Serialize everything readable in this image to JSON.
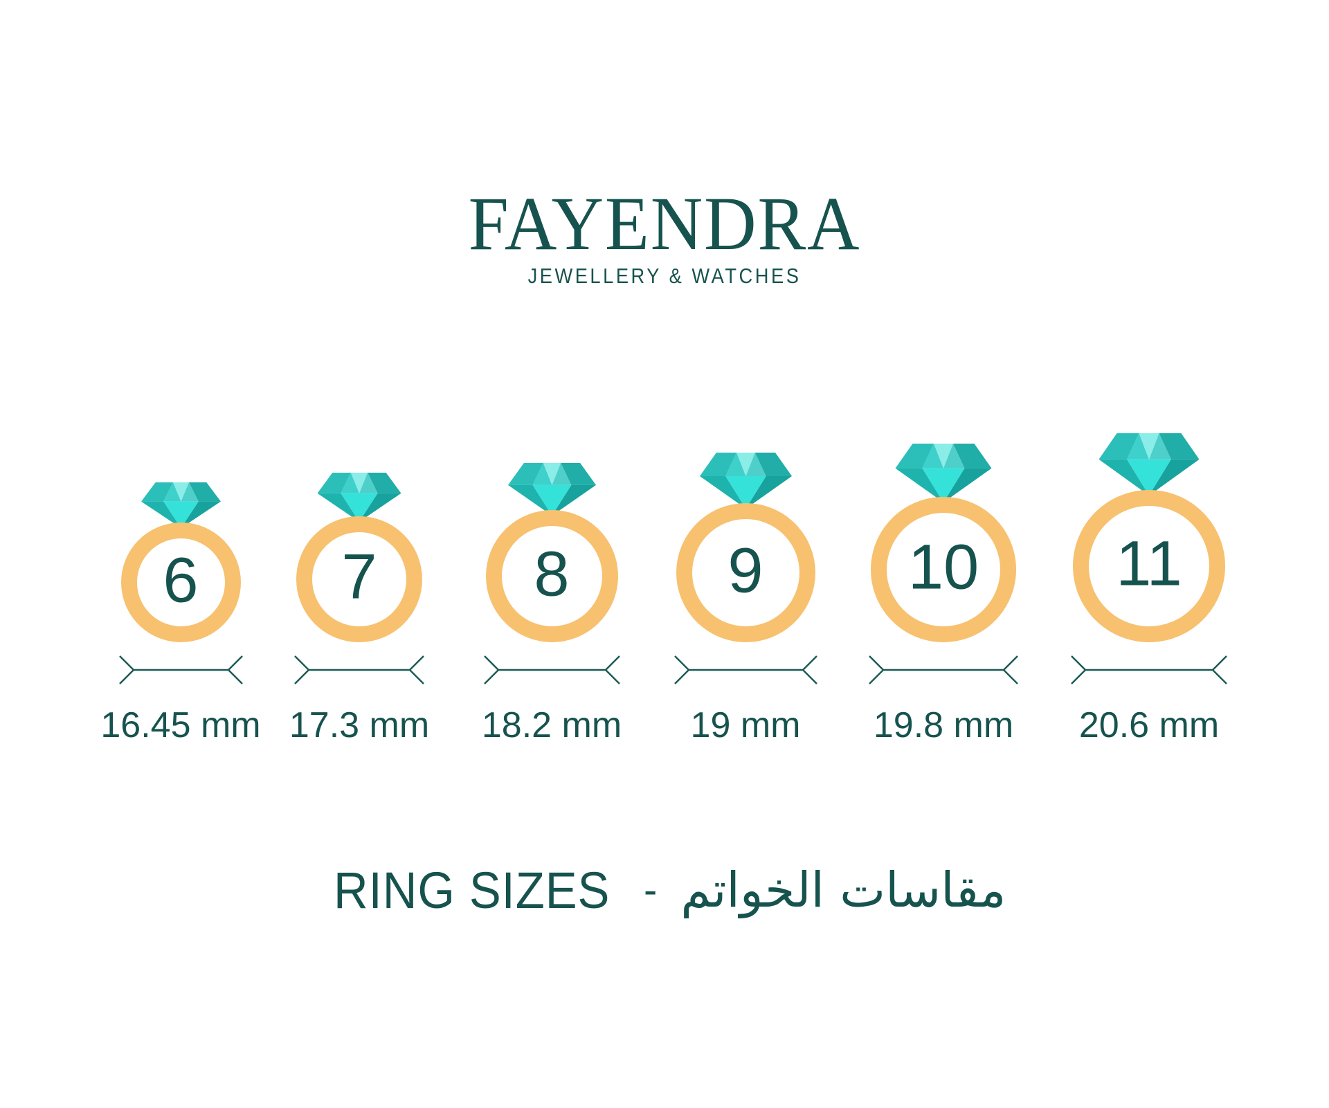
{
  "logo": {
    "brand": "FAYENDRA",
    "tagline": "JEWELLERY & WATCHES"
  },
  "rings": [
    {
      "size": "6",
      "width_label": "16.45 mm"
    },
    {
      "size": "7",
      "width_label": "17.3 mm"
    },
    {
      "size": "8",
      "width_label": "18.2 mm"
    },
    {
      "size": "9",
      "width_label": "19 mm"
    },
    {
      "size": "10",
      "width_label": "19.8 mm"
    },
    {
      "size": "11",
      "width_label": "20.6 mm"
    }
  ],
  "footer": {
    "title_en": "RING SIZES",
    "separator": "-",
    "title_ar": "مقاسات الخواتم"
  },
  "colors": {
    "text_teal": "#17534E",
    "band_orange": "#F7C16F",
    "dimension_line": "#1A5A55",
    "diamond_palette": [
      "#2CBFBA",
      "#3ED0CA",
      "#8AEDE8",
      "#4FCFCA",
      "#21ADA8",
      "#1FB3AD",
      "#35E2DA",
      "#17A29D"
    ]
  }
}
